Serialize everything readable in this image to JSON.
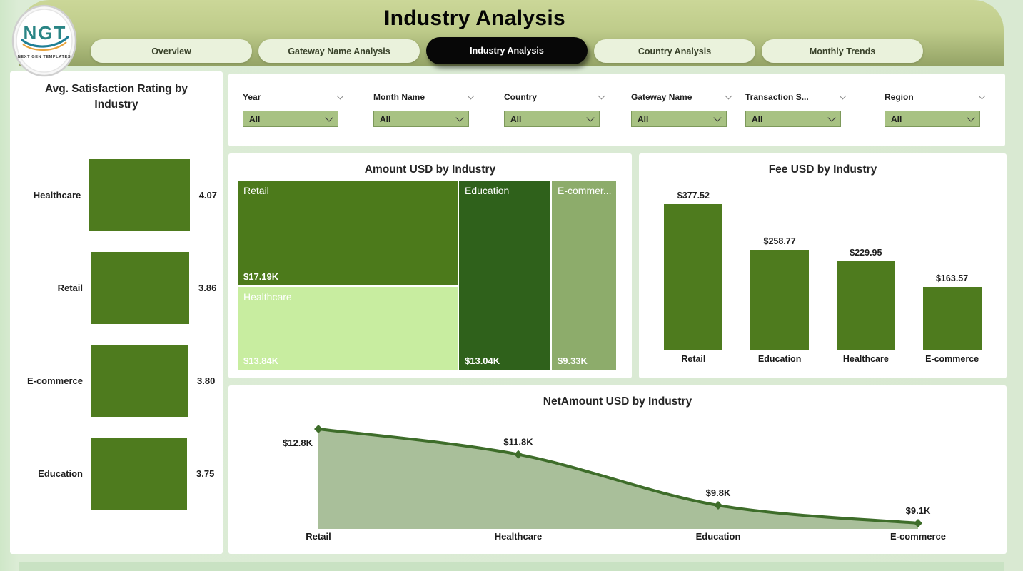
{
  "header": {
    "title": "Industry Analysis",
    "logo": {
      "text": "NGT",
      "subtext": "NEXT GEN TEMPLATES"
    },
    "tabs": [
      {
        "label": "Overview",
        "active": false
      },
      {
        "label": "Gateway Name Analysis",
        "active": false
      },
      {
        "label": "Industry Analysis",
        "active": true
      },
      {
        "label": "Country Analysis",
        "active": false
      },
      {
        "label": "Monthly Trends",
        "active": false
      }
    ]
  },
  "filters": [
    {
      "label": "Year",
      "value": "All"
    },
    {
      "label": "Month Name",
      "value": "All"
    },
    {
      "label": "Country",
      "value": "All"
    },
    {
      "label": "Gateway Name",
      "value": "All"
    },
    {
      "label": "Transaction S...",
      "value": "All"
    },
    {
      "label": "Region",
      "value": "All"
    }
  ],
  "colors": {
    "header_gradient_top": "#cbd798",
    "header_gradient_bottom": "#93a265",
    "page_background": "#d9e9d2",
    "card_background": "#ffffff",
    "active_tab_background": "#070707",
    "inactive_tab_background": "#eaf2dc",
    "slicer_fill": "#a8c283",
    "slicer_border": "#7d995b",
    "bar_green": "#4e7b1e",
    "logo_teal": "#2a8585",
    "logo_swoosh_orange": "#e6a23c"
  },
  "chart_data": [
    {
      "id": "satisfaction",
      "type": "bar",
      "orientation": "horizontal",
      "title": "Avg. Satisfaction Rating by Industry",
      "categories": [
        "Healthcare",
        "Retail",
        "E-commerce",
        "Education"
      ],
      "values": [
        4.07,
        3.86,
        3.8,
        3.75
      ],
      "data_labels": [
        "4.07",
        "3.86",
        "3.80",
        "3.75"
      ],
      "xlim": [
        0,
        4.07
      ],
      "bar_color": "#4e7b1e",
      "grid": false,
      "legend": "none"
    },
    {
      "id": "amount_treemap",
      "type": "treemap",
      "title": "Amount USD by Industry",
      "blocks": [
        {
          "label": "Retail",
          "value": 17.19,
          "data_label": "$17.19K",
          "color": "#4c7a1b"
        },
        {
          "label": "Healthcare",
          "value": 13.84,
          "data_label": "$13.84K",
          "color": "#c8eda0"
        },
        {
          "label": "Education",
          "value": 13.04,
          "data_label": "$13.04K",
          "color": "#2f611b"
        },
        {
          "label": "E-commer...",
          "value": 9.33,
          "data_label": "$9.33K",
          "color": "#8dac6b"
        }
      ]
    },
    {
      "id": "fee",
      "type": "bar",
      "orientation": "vertical",
      "title": "Fee USD by Industry",
      "categories": [
        "Retail",
        "Education",
        "Healthcare",
        "E-commerce"
      ],
      "values": [
        377.52,
        258.77,
        229.95,
        163.57
      ],
      "data_labels": [
        "$377.52",
        "$258.77",
        "$229.95",
        "$163.57"
      ],
      "ylim": [
        0,
        377.52
      ],
      "bar_color": "#4e7b1e",
      "grid": false,
      "legend": "none"
    },
    {
      "id": "netamount",
      "type": "area",
      "title": "NetAmount USD by Industry",
      "categories": [
        "Retail",
        "Healthcare",
        "Education",
        "E-commerce"
      ],
      "values": [
        12.8,
        11.8,
        9.8,
        9.1
      ],
      "data_labels": [
        "$12.8K",
        "$11.8K",
        "$9.8K",
        "$9.1K"
      ],
      "line_color": "#3e6d2a",
      "fill_color": "#a9bf9a",
      "marker": "diamond",
      "grid": false,
      "legend": "none"
    }
  ]
}
